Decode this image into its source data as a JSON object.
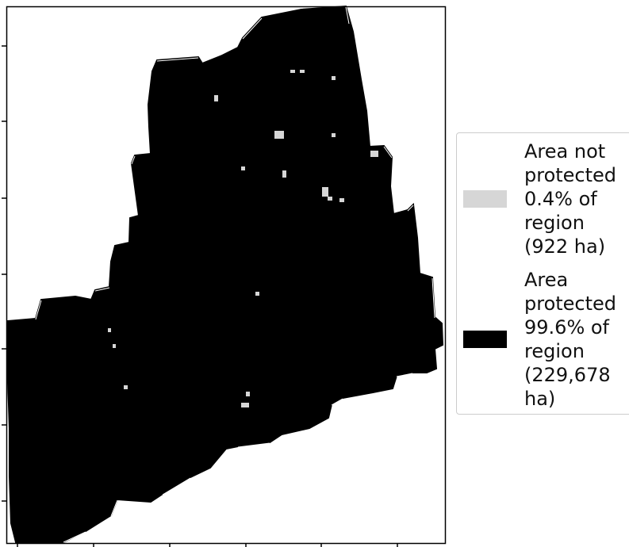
{
  "map": {
    "region_fill": "#000000",
    "gap_fill": "#d6d6d6",
    "legend_entries": [
      {
        "label": "Area not\nprotected\n0.4% of\nregion\n(922 ha)",
        "color": "#d6d6d6",
        "percent": 0.4,
        "hectares": 922
      },
      {
        "label": "Area\nprotected\n99.6% of\nregion\n(229,678\nha)",
        "color": "#000000",
        "percent": 99.6,
        "hectares": 229678
      }
    ]
  }
}
